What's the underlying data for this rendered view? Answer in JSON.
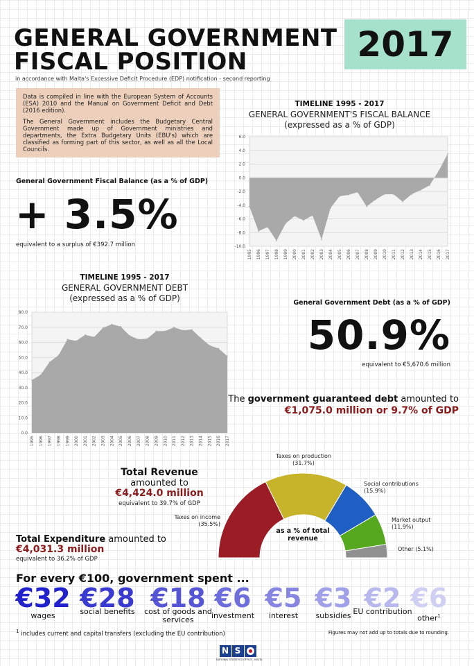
{
  "header": {
    "title_line1": "GENERAL GOVERNMENT",
    "title_line2": "FISCAL POSITION",
    "subtitle": "in accordance with Malta's Excessive Deficit Procedure (EDP) notification - second reporting",
    "year": "2017"
  },
  "info": {
    "p1": "Data is compiled in line with the European System of Accounts (ESA) 2010 and the Manual on Government Deficit and Debt (2016 edition).",
    "p2": "The General Government includes the Budgetary Central Government made up of Government ministries and departments, the Extra Budgetary Units (EBU's) which are classified as forming part of this sector, as well as all the Local Councils."
  },
  "balance": {
    "label": "General Government Fiscal Balance (as a % of GDP)",
    "value": "+ 3.5%",
    "note": "equivalent to a surplus of €392.7 million"
  },
  "debt": {
    "label": "General Government Debt (as a % of GDP)",
    "value": "50.9%",
    "note": "equivalent to €5,670.6 million"
  },
  "guaranteed": {
    "line1_pre": "The ",
    "line1_bold": "government guaranteed debt",
    "line1_post": " amounted to",
    "line2": "€1,075.0 million or 9.7% of GDP"
  },
  "revenue": {
    "title": "Total Revenue",
    "amounted": "amounted to",
    "amount": "€4,424.0 million",
    "note": "equivalent to 39.7% of GDP"
  },
  "expenditure": {
    "title": "Total Expenditure",
    "amounted": " amounted to",
    "amount": "€4,031.3 million",
    "note": "equivalent to 36.2% of GDP"
  },
  "spending": {
    "title": "For every €100, government spent ...",
    "footnote_mark": "1",
    "footnote": "includes current and capital transfers (excluding the EU contribution)",
    "rounding_note": "Figures may not add up to totals due to rounding.",
    "items": [
      {
        "value": "€32",
        "label": "wages",
        "color": "#2222cc"
      },
      {
        "value": "€28",
        "label": "social benefits",
        "color": "#3a3ad0"
      },
      {
        "value": "€18",
        "label": "cost of goods and services",
        "color": "#5555d6"
      },
      {
        "value": "€6",
        "label": "investment",
        "color": "#6d6ddc"
      },
      {
        "value": "€5",
        "label": "interest",
        "color": "#8686e2"
      },
      {
        "value": "€3",
        "label": "subsidies",
        "color": "#a0a0e8"
      },
      {
        "value": "€2",
        "label": "EU contribution",
        "color": "#b8b8ee"
      },
      {
        "value": "€6",
        "label": "other",
        "color": "#cfcff3",
        "sup": "1"
      }
    ]
  },
  "footer": {
    "logo_text": "NSO",
    "logo_sub": "NATIONAL STATISTICS OFFICE - MALTA"
  },
  "chart_data": [
    {
      "type": "area",
      "title_line1": "TIMELINE 1995 - 2017",
      "title_line2": "GENERAL GOVERNMENT'S FISCAL BALANCE",
      "title_line3": "(expressed as a % of GDP)",
      "x": [
        "1995",
        "1996",
        "1997",
        "1998",
        "1999",
        "2000",
        "2001",
        "2002",
        "2003",
        "2004",
        "2005",
        "2006",
        "2007",
        "2008",
        "2009",
        "2010",
        "2011",
        "2012",
        "2013",
        "2014",
        "2015",
        "2016",
        "2017"
      ],
      "values": [
        -4.2,
        -7.8,
        -7.2,
        -9.2,
        -6.7,
        -5.6,
        -6.2,
        -5.5,
        -9.0,
        -4.4,
        -2.7,
        -2.5,
        -2.1,
        -4.2,
        -3.2,
        -2.4,
        -2.4,
        -3.5,
        -2.4,
        -1.8,
        -1.1,
        1.0,
        3.5
      ],
      "ylim": [
        -10,
        6
      ],
      "yticks": [
        "6.0",
        "4.0",
        "2.0",
        "0.0",
        "-2.0",
        "-4.0",
        "-6.0",
        "-8.0",
        "-10.0"
      ],
      "grid": true,
      "color": "#a9a9a9"
    },
    {
      "type": "area",
      "title_line1": "TIMELINE 1995 - 2017",
      "title_line2": "GENERAL GOVERNMENT DEBT",
      "title_line3": "(expressed as a % of GDP)",
      "x": [
        "1995",
        "1996",
        "1997",
        "1998",
        "1999",
        "2000",
        "2001",
        "2002",
        "2003",
        "2004",
        "2005",
        "2006",
        "2007",
        "2008",
        "2009",
        "2010",
        "2011",
        "2012",
        "2013",
        "2014",
        "2015",
        "2016",
        "2017"
      ],
      "values": [
        35,
        38.5,
        47,
        51.5,
        62,
        61,
        65,
        63.5,
        69.5,
        72,
        70.5,
        64.5,
        62,
        62.5,
        67.5,
        67.5,
        70,
        68,
        68.5,
        63,
        58,
        56,
        50.9
      ],
      "ylim": [
        0,
        80
      ],
      "yticks": [
        "80.0",
        "70.0",
        "60.0",
        "50.0",
        "40.0",
        "30.0",
        "20.0",
        "10.0",
        "0.0"
      ],
      "grid": true,
      "color": "#a9a9a9"
    },
    {
      "type": "pie",
      "style": "half-donut",
      "center_label": "as a % of total revenue",
      "slices": [
        {
          "label": "Taxes on income",
          "pct_label": "(35.5%)",
          "value": 35.5,
          "color": "#9b1c24"
        },
        {
          "label": "Taxes on production",
          "pct_label": "(31.7%)",
          "value": 31.7,
          "color": "#c7b42b"
        },
        {
          "label": "Social contributions",
          "pct_label": "(15.9%)",
          "value": 15.9,
          "color": "#1f5fc4"
        },
        {
          "label": "Market output",
          "pct_label": "(11.9%)",
          "value": 11.9,
          "color": "#56a81f"
        },
        {
          "label": "Other",
          "pct_label": "(5.1%)",
          "value": 5.1,
          "color": "#909090"
        }
      ]
    }
  ]
}
